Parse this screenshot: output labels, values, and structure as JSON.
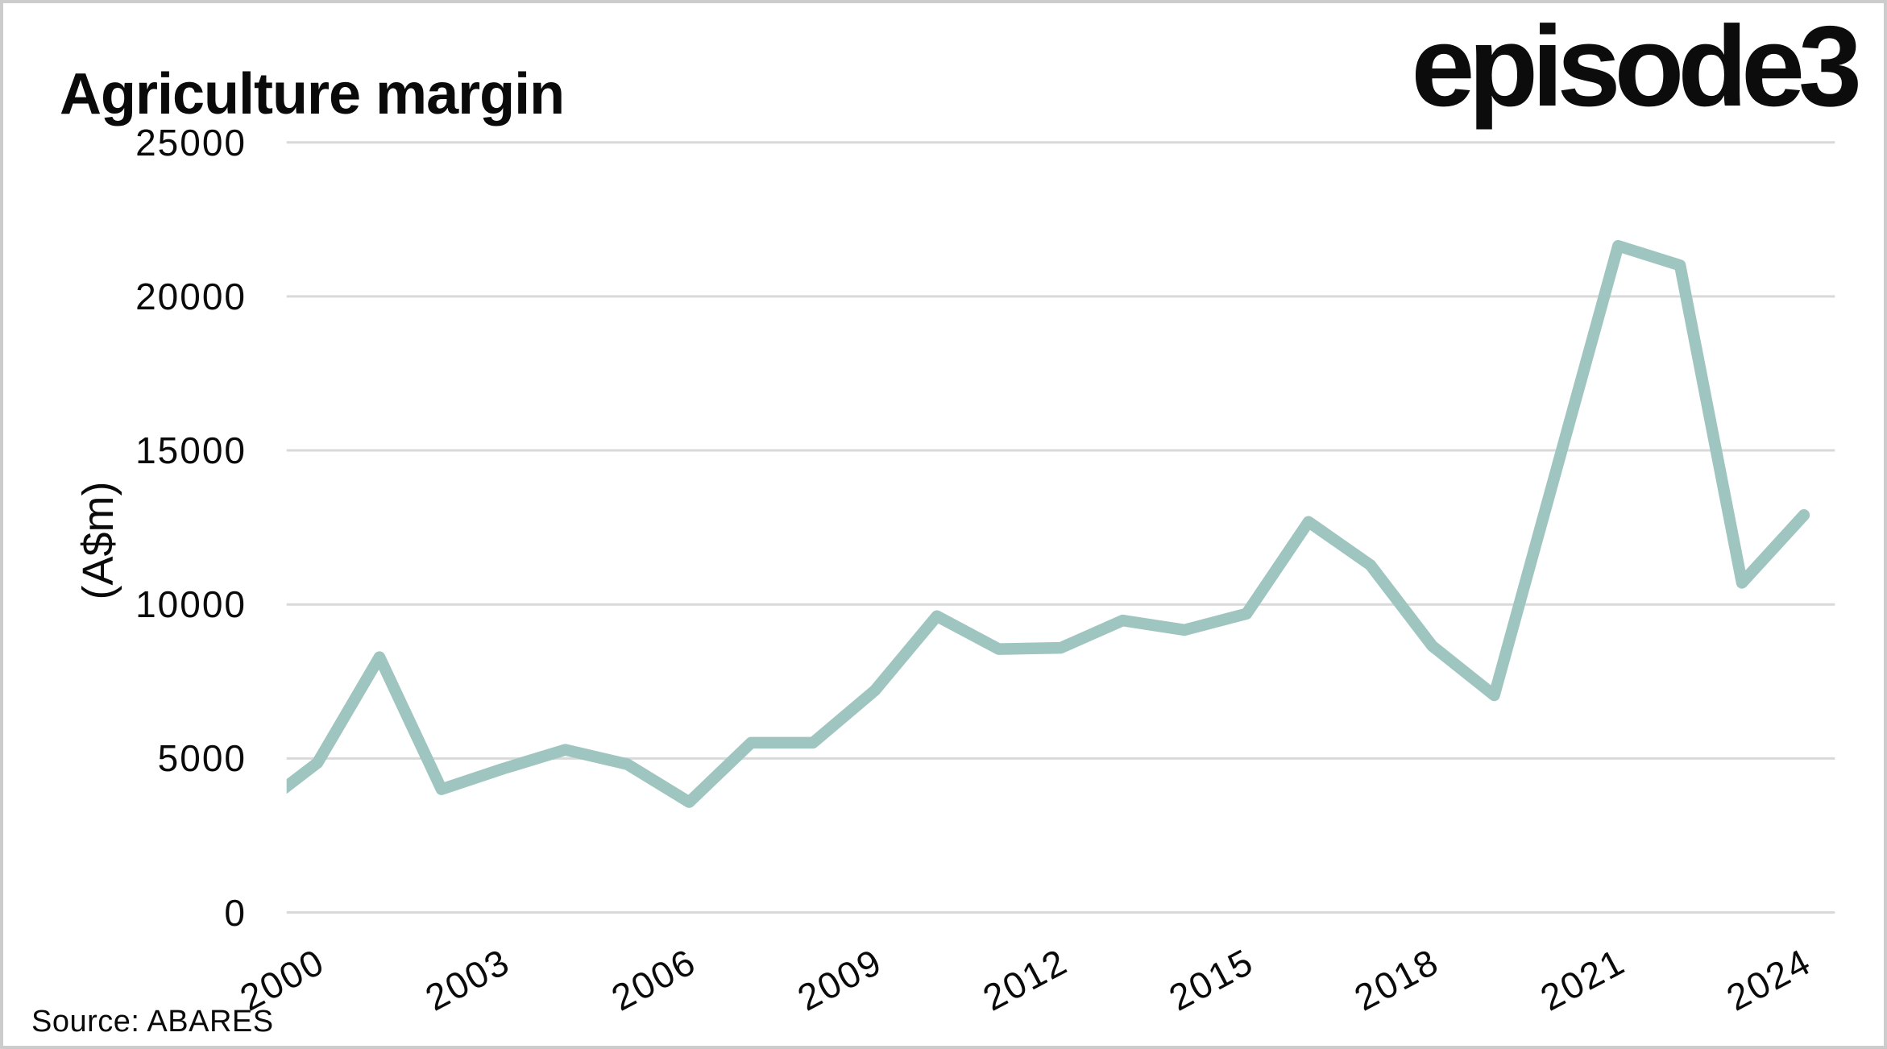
{
  "header": {
    "title": "Agriculture margin",
    "logo": "episode3"
  },
  "footer": {
    "source": "Source: ABARES"
  },
  "colors": {
    "line": "#9ec5c0",
    "grid": "#d9d9d9",
    "text": "#0a0a0a"
  },
  "chart_data": {
    "type": "line",
    "title": "Agriculture margin",
    "xlabel": "",
    "ylabel": "(A$m)",
    "legend": "none",
    "grid": "horizontal-only",
    "ylim": [
      0,
      25000
    ],
    "xlim": [
      1999.5,
      2024.5
    ],
    "y_ticks": [
      0,
      5000,
      10000,
      15000,
      20000,
      25000
    ],
    "x_ticks": [
      2000,
      2003,
      2006,
      2009,
      2012,
      2015,
      2018,
      2021,
      2024
    ],
    "x": [
      1999,
      2000,
      2001,
      2002,
      2003,
      2004,
      2005,
      2006,
      2007,
      2008,
      2009,
      2010,
      2011,
      2012,
      2013,
      2014,
      2015,
      2016,
      2017,
      2018,
      2019,
      2020,
      2021,
      2022,
      2023,
      2024
    ],
    "values": [
      3320,
      4860,
      8290,
      4000,
      4670,
      5280,
      4810,
      3580,
      5510,
      5510,
      7210,
      9620,
      8550,
      8590,
      9480,
      9170,
      9700,
      12680,
      11280,
      8650,
      7050,
      14350,
      21640,
      21010,
      10700,
      12900
    ],
    "series": [
      {
        "name": "Agriculture margin (A$m)",
        "values": [
          3320,
          4860,
          8290,
          4000,
          4670,
          5280,
          4810,
          3580,
          5510,
          5510,
          7210,
          9620,
          8550,
          8590,
          9480,
          9170,
          9700,
          12680,
          11280,
          8650,
          7050,
          14350,
          21640,
          21010,
          10700,
          12900
        ]
      }
    ]
  }
}
